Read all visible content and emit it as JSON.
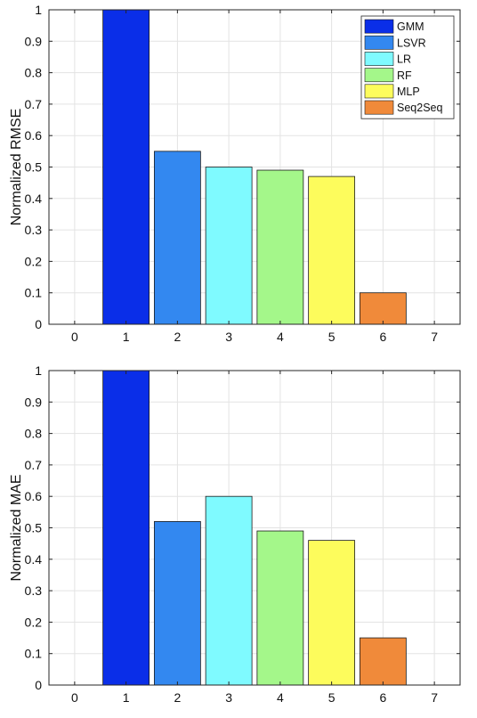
{
  "chart_data": [
    {
      "type": "bar",
      "ylabel": "Normalized RMSE",
      "xlim": [
        -0.5,
        7.5
      ],
      "ylim": [
        0,
        1
      ],
      "xticks": [
        "0",
        "1",
        "2",
        "3",
        "4",
        "5",
        "6",
        "7"
      ],
      "yticks": [
        "0",
        "0.1",
        "0.2",
        "0.3",
        "0.4",
        "0.5",
        "0.6",
        "0.7",
        "0.8",
        "0.9",
        "1"
      ],
      "grid": true,
      "legend_position": "top-right",
      "categories": [
        1,
        2,
        3,
        4,
        5,
        6
      ],
      "series": [
        {
          "name": "GMM",
          "x": 1,
          "value": 1.0,
          "color": "#0a2ee8"
        },
        {
          "name": "LSVR",
          "x": 2,
          "value": 0.55,
          "color": "#3388f0"
        },
        {
          "name": "LR",
          "x": 3,
          "value": 0.5,
          "color": "#7ffaff"
        },
        {
          "name": "RF",
          "x": 4,
          "value": 0.49,
          "color": "#a4f78a"
        },
        {
          "name": "MLP",
          "x": 5,
          "value": 0.47,
          "color": "#fdfc5c"
        },
        {
          "name": "Seq2Seq",
          "x": 6,
          "value": 0.1,
          "color": "#f08a3a"
        }
      ]
    },
    {
      "type": "bar",
      "ylabel": "Normalized MAE",
      "xlim": [
        -0.5,
        7.5
      ],
      "ylim": [
        0,
        1
      ],
      "xticks": [
        "0",
        "1",
        "2",
        "3",
        "4",
        "5",
        "6",
        "7"
      ],
      "yticks": [
        "0",
        "0.1",
        "0.2",
        "0.3",
        "0.4",
        "0.5",
        "0.6",
        "0.7",
        "0.8",
        "0.9",
        "1"
      ],
      "grid": true,
      "categories": [
        1,
        2,
        3,
        4,
        5,
        6
      ],
      "series": [
        {
          "x": 1,
          "value": 1.0,
          "color": "#0a2ee8"
        },
        {
          "x": 2,
          "value": 0.52,
          "color": "#3388f0"
        },
        {
          "x": 3,
          "value": 0.6,
          "color": "#7ffaff"
        },
        {
          "x": 4,
          "value": 0.49,
          "color": "#a4f78a"
        },
        {
          "x": 5,
          "value": 0.46,
          "color": "#fdfc5c"
        },
        {
          "x": 6,
          "value": 0.15,
          "color": "#f08a3a"
        }
      ]
    }
  ]
}
